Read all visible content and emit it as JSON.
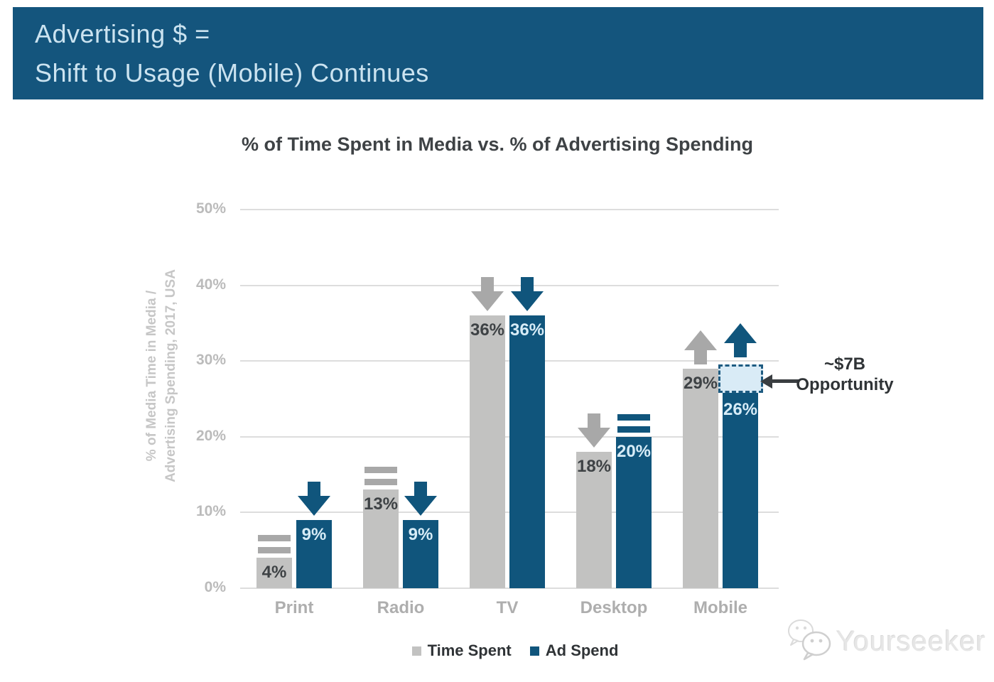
{
  "header": {
    "line1": "Advertising $ =",
    "line2": "Shift to Usage (Mobile) Continues"
  },
  "chart_data": {
    "type": "bar",
    "title": "% of Time Spent in Media vs. % of Advertising Spending",
    "ylabel": "% of Media Time in Media / Advertising Spending, 2017, USA",
    "ylabel_lines": [
      "% of Media Time in Media /",
      "Advertising Spending, 2017, USA"
    ],
    "categories": [
      "Print",
      "Radio",
      "TV",
      "Desktop",
      "Mobile"
    ],
    "series": [
      {
        "name": "Time Spent",
        "color": "#C2C2C1",
        "trend_color": "#A8A8A8",
        "label_color": "#3E4245",
        "values": [
          4,
          13,
          36,
          18,
          29
        ],
        "labels": [
          "4%",
          "13%",
          "36%",
          "18%",
          "29%"
        ],
        "trends": [
          "flat",
          "flat",
          "down",
          "down",
          "up"
        ]
      },
      {
        "name": "Ad Spend",
        "color": "#10557C",
        "trend_color": "#10557C",
        "label_color": "#D7ECF7",
        "values": [
          9,
          9,
          36,
          20,
          26
        ],
        "labels": [
          "9%",
          "9%",
          "36%",
          "20%",
          "26%"
        ],
        "trends": [
          "down",
          "down",
          "down",
          "flat",
          "up"
        ]
      }
    ],
    "y_ticks": [
      "0%",
      "10%",
      "20%",
      "30%",
      "40%",
      "50%"
    ],
    "ylim": [
      0,
      50
    ],
    "grid": true,
    "legend_position": "bottom",
    "opportunity_box": {
      "category": "Mobile",
      "series": "Ad Spend",
      "from_value": 26,
      "to_value": 29
    }
  },
  "annotation": {
    "line1": "~$7B",
    "line2": "Opportunity"
  },
  "legend": {
    "items": [
      {
        "label": "Time Spent",
        "color": "#C2C2C1"
      },
      {
        "label": "Ad Spend",
        "color": "#10557C"
      }
    ]
  },
  "watermark": {
    "text": "Yourseeker"
  },
  "colors": {
    "banner_bg": "#14557D",
    "banner_text": "#CBE3F0",
    "bar_gray": "#C2C2C1",
    "bar_blue": "#10557C",
    "opportunity_fill": "#D9EBF6",
    "opportunity_border": "#1E5B81",
    "title_text": "#3E4245",
    "axis_text": "#BBBBBB",
    "category_text": "#AEAEAE",
    "gridline": "#DDDDDD",
    "annotation_text": "#2F3336"
  }
}
